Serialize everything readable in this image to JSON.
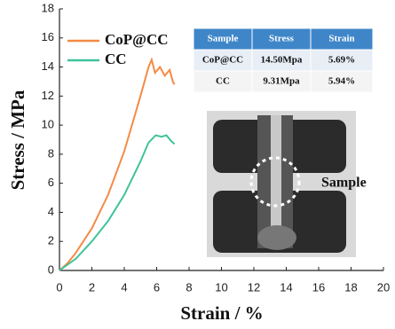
{
  "chart_data": {
    "type": "line",
    "xlabel": "Strain / %",
    "ylabel": "Stress / MPa",
    "xlim": [
      0,
      20
    ],
    "xticks": [
      0,
      2,
      4,
      6,
      8,
      10,
      12,
      14,
      16,
      18,
      20
    ],
    "ylim": [
      0,
      18
    ],
    "yticks": [
      0,
      2,
      4,
      6,
      8,
      10,
      12,
      14,
      16,
      18
    ],
    "series": [
      {
        "name": "CoP@CC",
        "color": "#f58a45",
        "x": [
          0,
          0.5,
          1,
          2,
          3,
          4,
          5,
          5.5,
          5.69,
          5.9,
          6.2,
          6.5,
          6.8,
          7.0,
          7.1
        ],
        "values": [
          0,
          0.5,
          1.2,
          2.9,
          5.2,
          8.2,
          12.0,
          14.0,
          14.5,
          13.6,
          14.0,
          13.4,
          13.8,
          13.0,
          12.8
        ]
      },
      {
        "name": "CC",
        "color": "#3fc39a",
        "x": [
          0,
          1,
          2,
          3,
          4,
          5,
          5.5,
          5.94,
          6.3,
          6.6,
          6.9,
          7.1
        ],
        "values": [
          0,
          0.8,
          2.0,
          3.4,
          5.2,
          7.5,
          8.8,
          9.3,
          9.2,
          9.3,
          8.9,
          8.7
        ]
      }
    ],
    "table": {
      "columns": [
        "Sample",
        "Stress",
        "Strain"
      ],
      "rows": [
        [
          "CoP@CC",
          "14.50Mpa",
          "5.69%"
        ],
        [
          "CC",
          "9.31Mpa",
          "5.94%"
        ]
      ]
    },
    "photo_label": "Sample"
  }
}
